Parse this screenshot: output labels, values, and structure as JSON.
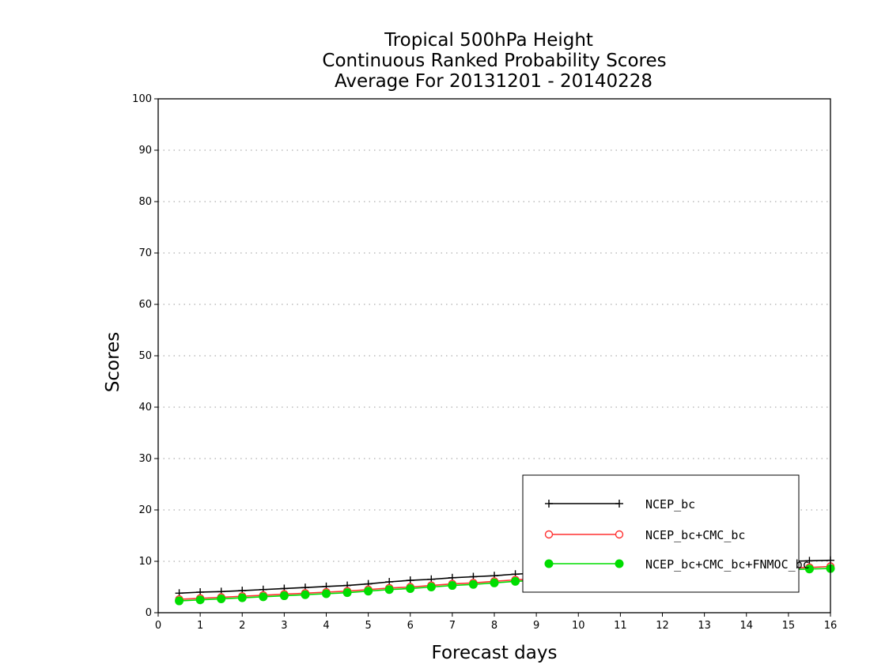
{
  "chart_data": {
    "type": "line",
    "title": [
      "Tropical 500hPa Height",
      "Continuous Ranked Probability Scores",
      "Average For 20131201 - 20140228"
    ],
    "xlabel": "Forecast days",
    "ylabel": "Scores",
    "xlim": [
      0,
      16
    ],
    "ylim": [
      0,
      100
    ],
    "xticks": [
      0,
      1,
      2,
      3,
      4,
      5,
      6,
      7,
      8,
      9,
      10,
      11,
      12,
      13,
      14,
      15,
      16
    ],
    "yticks": [
      0,
      10,
      20,
      30,
      40,
      50,
      60,
      70,
      80,
      90,
      100
    ],
    "grid": "horizontal dotted",
    "legend_placement": "bottom-right",
    "x": [
      0.5,
      1,
      1.5,
      2,
      2.5,
      3,
      3.5,
      4,
      4.5,
      5,
      5.5,
      6,
      6.5,
      7,
      7.5,
      8,
      8.5,
      9,
      9.5,
      10,
      10.5,
      11,
      11.5,
      12,
      12.5,
      13,
      13.5,
      14,
      14.5,
      15,
      15.5,
      16
    ],
    "series": [
      {
        "name": "NCEP_bc",
        "color": "#000000",
        "marker": "plus",
        "values": [
          3.8,
          4.0,
          4.1,
          4.3,
          4.5,
          4.7,
          4.9,
          5.1,
          5.3,
          5.6,
          6.0,
          6.3,
          6.5,
          6.8,
          7.0,
          7.2,
          7.5,
          7.7,
          7.9,
          8.1,
          8.3,
          8.5,
          8.7,
          8.9,
          9.0,
          9.2,
          9.4,
          9.6,
          9.8,
          10.0,
          10.1,
          10.2
        ]
      },
      {
        "name": "NCEP_bc+CMC_bc",
        "color": "#ff3030",
        "marker": "open-circle",
        "values": [
          2.6,
          2.8,
          3.0,
          3.2,
          3.4,
          3.6,
          3.8,
          4.0,
          4.2,
          4.5,
          4.8,
          5.0,
          5.3,
          5.6,
          5.8,
          6.1,
          6.4,
          6.6,
          6.8,
          7.0,
          7.2,
          7.4,
          7.6,
          7.8,
          8.0,
          8.1,
          8.3,
          8.4,
          8.6,
          8.7,
          8.8,
          9.0
        ]
      },
      {
        "name": "NCEP_bc+CMC_bc+FNMOC_bc",
        "color": "#00dd00",
        "marker": "filled-circle",
        "values": [
          2.3,
          2.5,
          2.7,
          2.9,
          3.1,
          3.3,
          3.5,
          3.7,
          3.9,
          4.2,
          4.5,
          4.7,
          5.0,
          5.3,
          5.5,
          5.8,
          6.1,
          6.3,
          6.5,
          6.7,
          6.9,
          7.1,
          7.3,
          7.5,
          7.7,
          7.8,
          8.0,
          8.1,
          8.3,
          8.4,
          8.5,
          8.6
        ]
      }
    ]
  }
}
